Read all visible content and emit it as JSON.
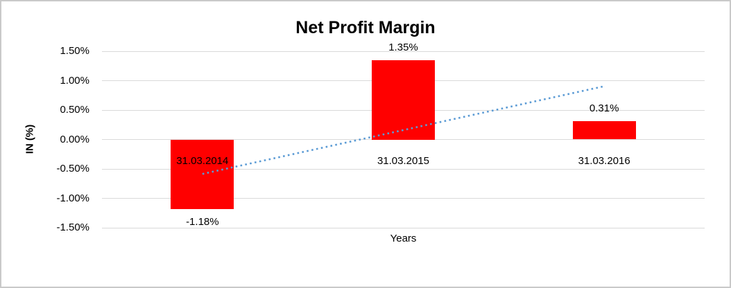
{
  "frame": {
    "border_color": "#c9c9c9",
    "background": "#ffffff"
  },
  "chart_data": {
    "type": "bar",
    "title": "Net Profit Margin",
    "xlabel": "Years",
    "ylabel": "IN (%)",
    "categories": [
      "31.03.2014",
      "31.03.2015",
      "31.03.2016"
    ],
    "series": [
      {
        "name": "Net Profit Margin",
        "values": [
          -1.18,
          1.35,
          0.31
        ],
        "data_labels": [
          "-1.18%",
          "1.35%",
          "0.31%"
        ],
        "color": "#ff0000"
      }
    ],
    "ylim": [
      -1.5,
      1.5
    ],
    "yticks": [
      {
        "value": 1.5,
        "label": "1.50%"
      },
      {
        "value": 1.0,
        "label": "1.00%"
      },
      {
        "value": 0.5,
        "label": "0.50%"
      },
      {
        "value": 0.0,
        "label": "0.00%"
      },
      {
        "value": -0.5,
        "label": "-0.50%"
      },
      {
        "value": -1.0,
        "label": "-1.00%"
      },
      {
        "value": -1.5,
        "label": "-1.50%"
      }
    ],
    "grid": true,
    "gridline_color": "#d9d9d9",
    "legend_position": "none",
    "trendline": {
      "type": "linear",
      "style": "dotted",
      "color": "#5b9bd5",
      "start_category_index": 0,
      "end_category_index": 2,
      "start_value": -0.585,
      "end_value": 0.905
    }
  }
}
